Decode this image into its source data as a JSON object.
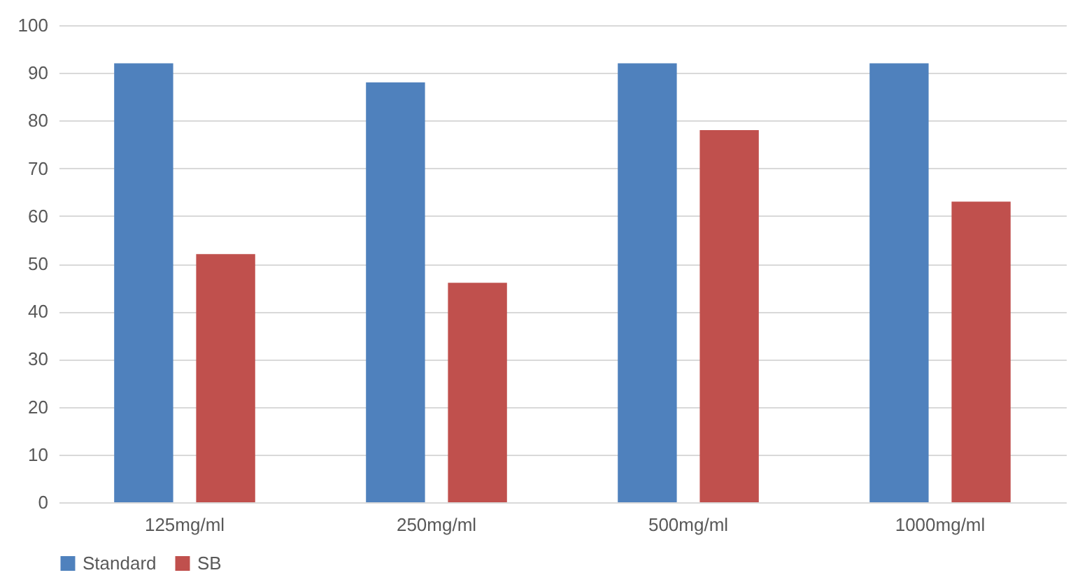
{
  "chart_data": {
    "type": "bar",
    "categories": [
      "125mg/ml",
      "250mg/ml",
      "500mg/ml",
      "1000mg/ml"
    ],
    "series": [
      {
        "name": "Standard",
        "color": "#4f81bd",
        "values": [
          92,
          88,
          92,
          92
        ]
      },
      {
        "name": "SB",
        "color": "#c0504d",
        "values": [
          52,
          46,
          78,
          63
        ]
      }
    ],
    "ylim": [
      0,
      100
    ],
    "yticks": [
      0,
      10,
      20,
      30,
      40,
      50,
      60,
      70,
      80,
      90,
      100
    ],
    "grid": "y",
    "legend": "bottom"
  }
}
